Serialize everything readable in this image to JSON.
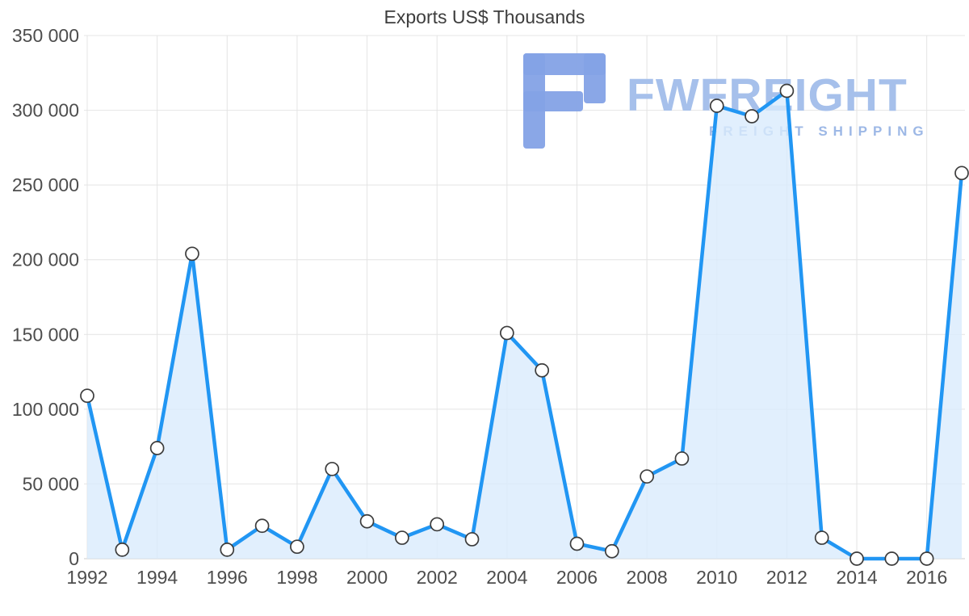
{
  "chart_data": {
    "type": "area",
    "title": "Exports US$ Thousands",
    "xlabel": "",
    "ylabel": "",
    "x": [
      1992,
      1993,
      1994,
      1995,
      1996,
      1997,
      1998,
      1999,
      2000,
      2001,
      2002,
      2003,
      2004,
      2005,
      2006,
      2007,
      2008,
      2009,
      2010,
      2011,
      2012,
      2013,
      2014,
      2015,
      2016,
      2017
    ],
    "values": [
      109000,
      6000,
      74000,
      204000,
      6000,
      22000,
      8000,
      60000,
      25000,
      14000,
      23000,
      13000,
      151000,
      126000,
      10000,
      5000,
      55000,
      67000,
      303000,
      296000,
      313000,
      14000,
      0,
      0,
      0,
      258000
    ],
    "ylim": [
      0,
      350000
    ],
    "yticks": [
      0,
      50000,
      100000,
      150000,
      200000,
      250000,
      300000,
      350000
    ],
    "ytick_labels": [
      "0",
      "50 000",
      "100 000",
      "150 000",
      "200 000",
      "250 000",
      "300 000",
      "350 000"
    ],
    "xtick_labels": [
      "1992",
      "1994",
      "1996",
      "1998",
      "2000",
      "2002",
      "2004",
      "2006",
      "2008",
      "2010",
      "2012",
      "2014",
      "2016"
    ],
    "grid": true,
    "legend": false,
    "colors": {
      "line": "#2196f3",
      "fill": "#d9ebfc",
      "grid": "#e4e4e4",
      "axis_line": "#cccccc",
      "axis_text": "#4d4d4d",
      "marker_fill": "#ffffff",
      "marker_stroke": "#3c3c3c"
    }
  },
  "watermark": {
    "brand": "FWFREIGHT",
    "tagline": "FREIGHT SHIPPING",
    "brand_color": "#a6c0eb",
    "logo_color": "#84a2e6"
  }
}
